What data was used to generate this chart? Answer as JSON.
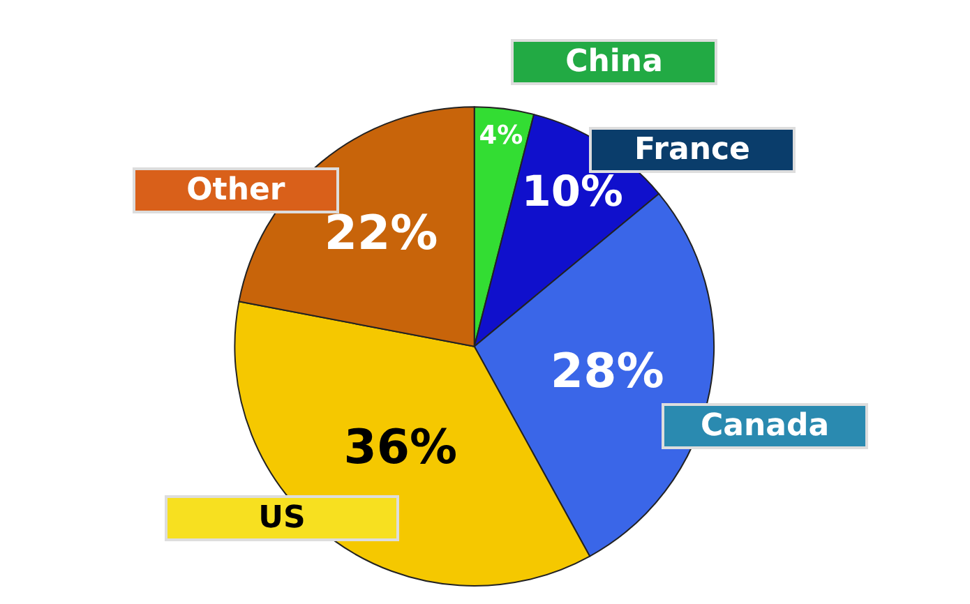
{
  "chart_data": {
    "type": "pie",
    "categories": [
      "China",
      "France",
      "Canada",
      "US",
      "Other"
    ],
    "values": [
      4,
      10,
      28,
      36,
      22
    ],
    "colors": [
      "#33dd33",
      "#1010cc",
      "#3a66e8",
      "#f5c800",
      "#c8640a"
    ],
    "value_labels": [
      "4%",
      "10%",
      "28%",
      "36%",
      "22%"
    ],
    "legend": false
  }
}
